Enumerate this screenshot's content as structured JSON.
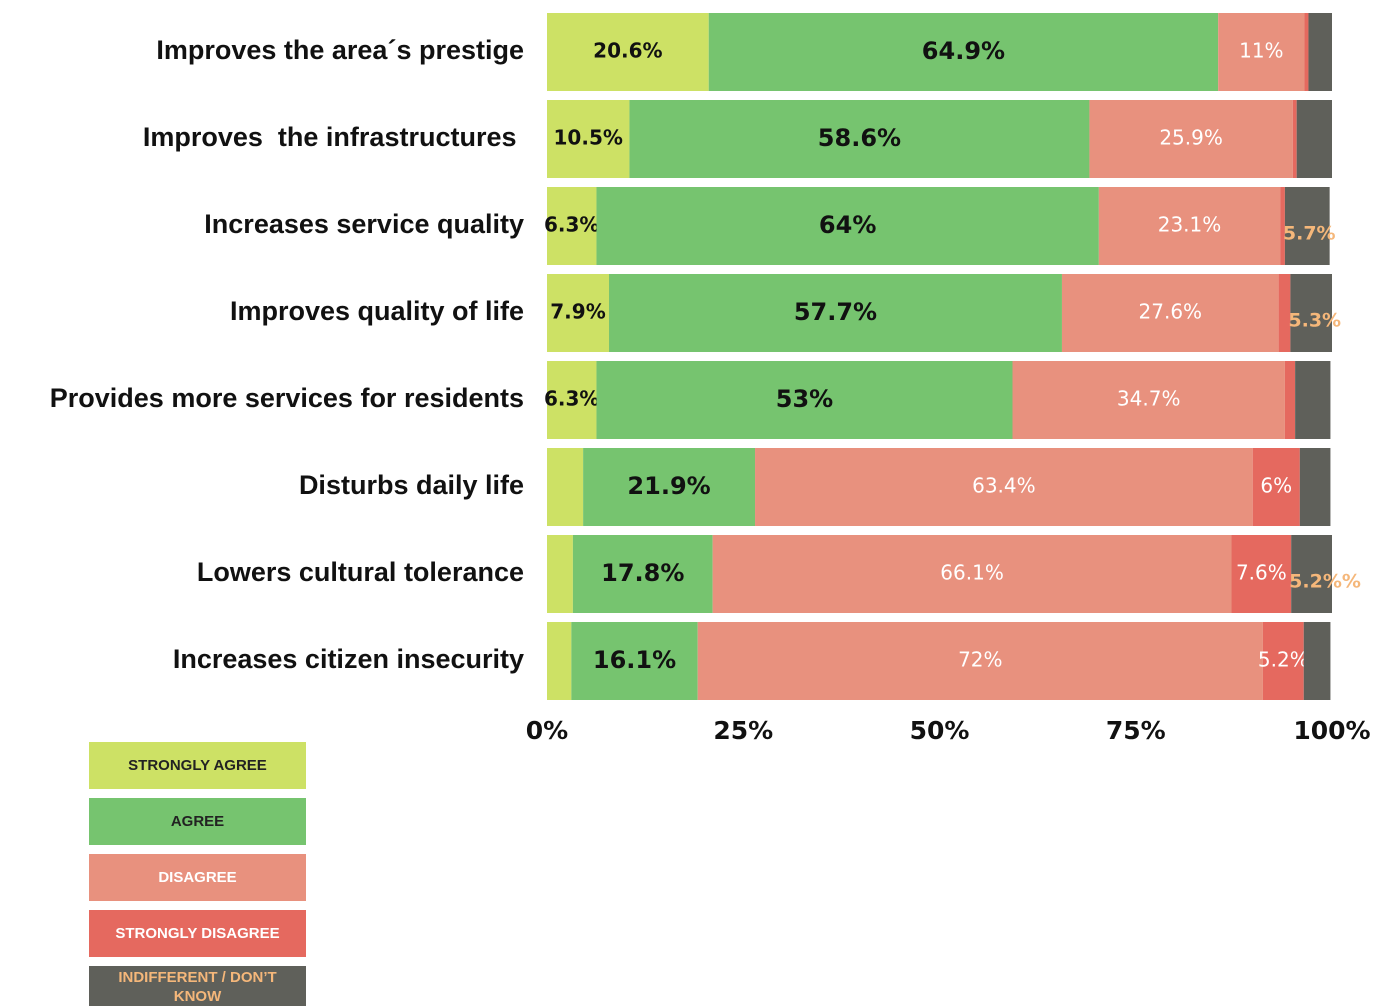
{
  "chart_data": {
    "type": "stacked-barh",
    "categories": [
      "Improves the area´s prestige",
      "Improves  the infrastructures ",
      "Increases service quality",
      "Improves quality of life",
      "Provides more services for residents",
      "Disturbs daily life",
      "Lowers cultural tolerance",
      "Increases citizen insecurity"
    ],
    "series": [
      {
        "name": "STRONGLY AGREE",
        "color": "#cde165",
        "values": [
          20.6,
          10.5,
          6.3,
          7.9,
          6.3,
          4.6,
          3.3,
          3.1
        ],
        "value_labels": [
          "20.6%",
          "10.5%",
          "6.3%",
          "7.9%",
          "6.3%",
          null,
          null,
          null
        ]
      },
      {
        "name": "AGREE",
        "color": "#76c46f",
        "values": [
          64.9,
          58.6,
          64,
          57.7,
          53,
          21.9,
          17.8,
          16.1
        ],
        "value_labels": [
          "64.9%",
          "58.6%",
          "64%",
          "57.7%",
          "53%",
          "21.9%",
          "17.8%",
          "16.1%"
        ]
      },
      {
        "name": "DISAGREE",
        "color": "#e8917e",
        "values": [
          11,
          25.9,
          23.1,
          27.6,
          34.7,
          63.4,
          66.1,
          72
        ],
        "value_labels": [
          "11%",
          "25.9%",
          "23.1%",
          "27.6%",
          "34.7%",
          "63.4%",
          "66.1%",
          "72%"
        ]
      },
      {
        "name": "STRONGLY DISAGREE",
        "color": "#e5695f",
        "values": [
          0.5,
          0.5,
          0.6,
          1.5,
          1.3,
          6,
          7.6,
          5.2
        ],
        "value_labels": [
          null,
          null,
          null,
          null,
          null,
          "6%",
          "7.6%",
          "5.2%"
        ]
      },
      {
        "name": "INDIFFERENT / DON’T KNOW",
        "color": "#5f605a",
        "values": [
          3,
          4.5,
          5.7,
          5.3,
          4.5,
          3.9,
          5.2,
          3.4
        ],
        "value_labels": [
          null,
          null,
          "5.7%",
          "5.3%",
          null,
          null,
          "5.2%%",
          null
        ]
      }
    ],
    "xlim": [
      0,
      100
    ],
    "xticks": [
      {
        "value": 0,
        "label": "0%"
      },
      {
        "value": 25,
        "label": "25%"
      },
      {
        "value": 50,
        "label": "50%"
      },
      {
        "value": 75,
        "label": "75%"
      },
      {
        "value": 100,
        "label": "100%"
      }
    ],
    "legend": "bottom-left"
  }
}
